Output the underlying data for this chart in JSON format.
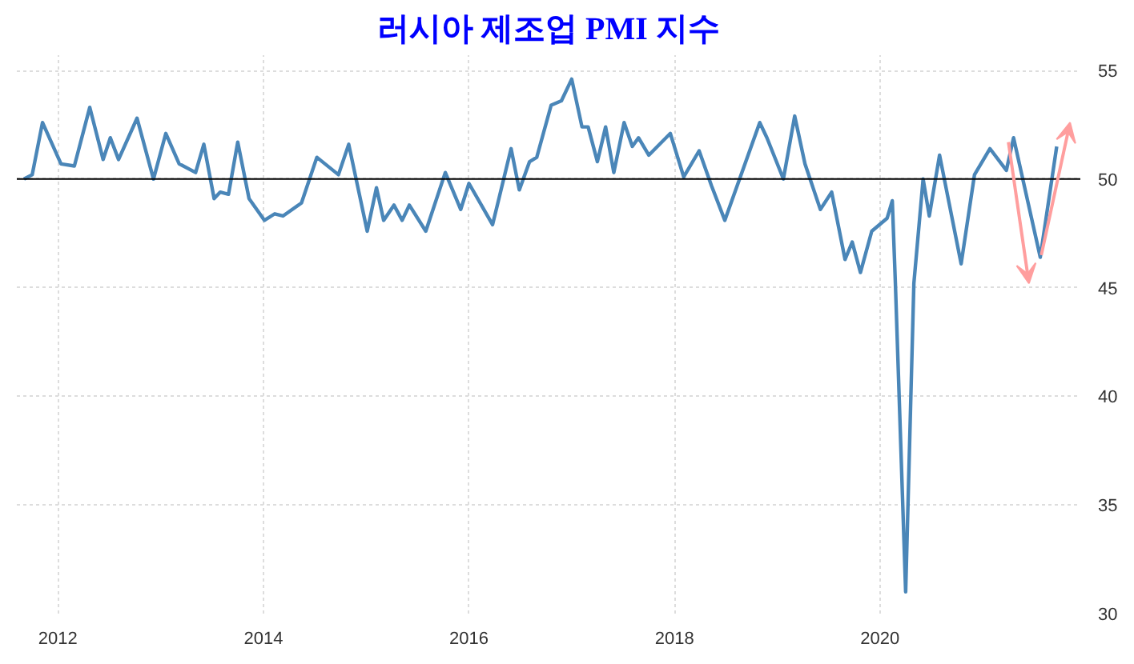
{
  "chart_data": {
    "type": "line",
    "title": "러시아 제조업 PMI 지수",
    "x": [
      2011.67,
      2011.75,
      2011.85,
      2012.03,
      2012.16,
      2012.31,
      2012.44,
      2012.51,
      2012.59,
      2012.77,
      2012.93,
      2013.05,
      2013.18,
      2013.34,
      2013.42,
      2013.52,
      2013.58,
      2013.66,
      2013.75,
      2013.86,
      2014.01,
      2014.11,
      2014.19,
      2014.37,
      2014.52,
      2014.73,
      2014.83,
      2015.01,
      2015.1,
      2015.17,
      2015.27,
      2015.35,
      2015.42,
      2015.58,
      2015.77,
      2015.92,
      2016.0,
      2016.23,
      2016.41,
      2016.49,
      2016.59,
      2016.66,
      2016.8,
      2016.9,
      2017.0,
      2017.1,
      2017.16,
      2017.25,
      2017.33,
      2017.41,
      2017.51,
      2017.59,
      2017.65,
      2017.75,
      2017.96,
      2018.09,
      2018.24,
      2018.36,
      2018.49,
      2018.83,
      2018.9,
      2019.06,
      2019.17,
      2019.27,
      2019.42,
      2019.53,
      2019.66,
      2019.73,
      2019.81,
      2019.92,
      2020.07,
      2020.12,
      2020.15,
      2020.25,
      2020.33,
      2020.42,
      2020.48,
      2020.58,
      2020.79,
      2020.92,
      2021.07,
      2021.23,
      2021.3,
      2021.56,
      2021.72
    ],
    "series": [
      {
        "color": "#4a86b8",
        "values": [
          50.0,
          50.2,
          52.6,
          50.7,
          50.6,
          53.3,
          50.9,
          51.9,
          50.9,
          52.8,
          50.0,
          52.1,
          50.7,
          50.3,
          51.6,
          49.1,
          49.4,
          49.3,
          51.7,
          49.1,
          48.1,
          48.4,
          48.3,
          48.9,
          51.0,
          50.2,
          51.6,
          47.6,
          49.6,
          48.1,
          48.8,
          48.1,
          48.8,
          47.6,
          50.3,
          48.6,
          49.8,
          47.9,
          51.4,
          49.5,
          50.8,
          51.0,
          53.4,
          53.6,
          54.6,
          52.4,
          52.4,
          50.8,
          52.4,
          50.3,
          52.6,
          51.5,
          51.9,
          51.1,
          52.1,
          50.1,
          51.3,
          49.7,
          48.1,
          52.6,
          51.9,
          50.0,
          52.9,
          50.7,
          48.6,
          49.4,
          46.3,
          47.1,
          45.7,
          47.6,
          48.2,
          49.0,
          45.2,
          31.0,
          45.2,
          50.0,
          48.3,
          51.1,
          46.1,
          50.2,
          51.4,
          50.4,
          51.9,
          46.4,
          51.5
        ]
      }
    ],
    "xlim": [
      2011.6,
      2021.95
    ],
    "ylim": [
      30,
      55.7
    ],
    "xticks": [
      2012,
      2014,
      2016,
      2018,
      2020
    ],
    "yticks": [
      30,
      35,
      40,
      45,
      50,
      55
    ],
    "ref_lines": [
      {
        "axis": "y",
        "value": 50,
        "color": "#000000"
      }
    ],
    "grid": true
  }
}
